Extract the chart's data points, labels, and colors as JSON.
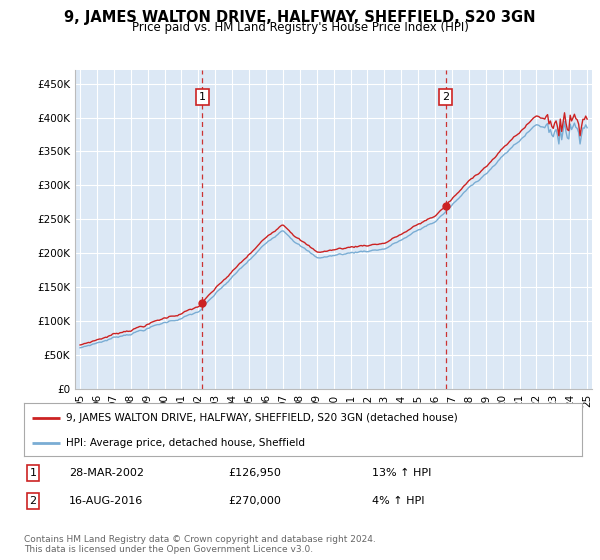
{
  "title": "9, JAMES WALTON DRIVE, HALFWAY, SHEFFIELD, S20 3GN",
  "subtitle": "Price paid vs. HM Land Registry's House Price Index (HPI)",
  "plot_bg_color": "#dce8f5",
  "sale1": {
    "date": "28-MAR-2002",
    "price": 126950,
    "hpi_pct": "13% ↑ HPI",
    "x": 2002.23
  },
  "sale2": {
    "date": "16-AUG-2016",
    "price": 270000,
    "hpi_pct": "4% ↑ HPI",
    "x": 2016.63
  },
  "legend_property": "9, JAMES WALTON DRIVE, HALFWAY, SHEFFIELD, S20 3GN (detached house)",
  "legend_hpi": "HPI: Average price, detached house, Sheffield",
  "footer": "Contains HM Land Registry data © Crown copyright and database right 2024.\nThis data is licensed under the Open Government Licence v3.0.",
  "ylim": [
    0,
    470000
  ],
  "xlim": [
    1994.7,
    2025.3
  ],
  "yticks": [
    0,
    50000,
    100000,
    150000,
    200000,
    250000,
    300000,
    350000,
    400000,
    450000
  ],
  "ytick_labels": [
    "£0",
    "£50K",
    "£100K",
    "£150K",
    "£200K",
    "£250K",
    "£300K",
    "£350K",
    "£400K",
    "£450K"
  ],
  "xticks": [
    1995,
    1996,
    1997,
    1998,
    1999,
    2000,
    2001,
    2002,
    2003,
    2004,
    2005,
    2006,
    2007,
    2008,
    2009,
    2010,
    2011,
    2012,
    2013,
    2014,
    2015,
    2016,
    2017,
    2018,
    2019,
    2020,
    2021,
    2022,
    2023,
    2024,
    2025
  ],
  "xtick_labels": [
    "95",
    "96",
    "97",
    "98",
    "99",
    "00",
    "01",
    "02",
    "03",
    "04",
    "05",
    "06",
    "07",
    "08",
    "09",
    "10",
    "11",
    "12",
    "13",
    "14",
    "15",
    "16",
    "17",
    "18",
    "19",
    "20",
    "21",
    "22",
    "23",
    "24",
    "25"
  ],
  "hpi_color": "#7aadd4",
  "property_color": "#cc2222",
  "vline_color": "#cc3333",
  "marker_color": "#cc2222",
  "grid_color": "#ffffff",
  "border_color": "#bbbbbb",
  "note_color": "#666666"
}
